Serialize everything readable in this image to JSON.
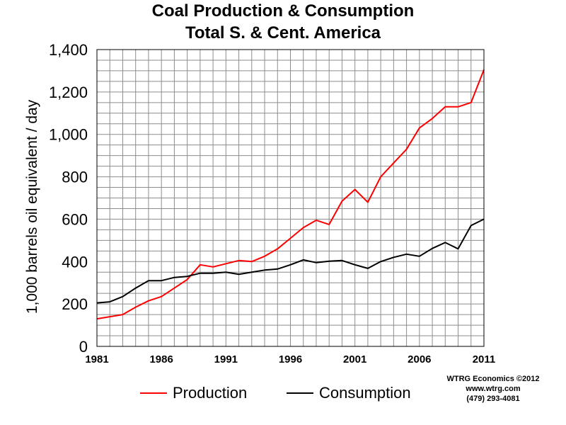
{
  "chart_data": {
    "type": "line",
    "title_line1": "Coal Production & Consumption",
    "title_line2": "Total S. & Cent. America",
    "ylabel": "1,000 barrels oil equivalent / day",
    "xlabel": "",
    "xlim": [
      1981,
      2011
    ],
    "ylim": [
      0,
      1400
    ],
    "x_ticks": [
      "1981",
      "1986",
      "1991",
      "1996",
      "2001",
      "2006",
      "2011"
    ],
    "y_ticks": [
      "0",
      "200",
      "400",
      "600",
      "800",
      "1,000",
      "1,200",
      "1,400"
    ],
    "grid": true,
    "legend_position": "bottom",
    "x": [
      1981,
      1982,
      1983,
      1984,
      1985,
      1986,
      1987,
      1988,
      1989,
      1990,
      1991,
      1992,
      1993,
      1994,
      1995,
      1996,
      1997,
      1998,
      1999,
      2000,
      2001,
      2002,
      2003,
      2004,
      2005,
      2006,
      2007,
      2008,
      2009,
      2010,
      2011
    ],
    "series": [
      {
        "name": "Production",
        "color": "#ff0000",
        "values": [
          130,
          140,
          150,
          185,
          215,
          235,
          275,
          315,
          385,
          375,
          390,
          405,
          400,
          425,
          460,
          510,
          560,
          595,
          575,
          685,
          740,
          680,
          800,
          865,
          930,
          1030,
          1075,
          1130,
          1130,
          1150,
          1305
        ]
      },
      {
        "name": "Consumption",
        "color": "#000000",
        "values": [
          205,
          210,
          235,
          275,
          310,
          310,
          325,
          330,
          345,
          345,
          350,
          340,
          350,
          360,
          365,
          385,
          408,
          395,
          402,
          405,
          385,
          368,
          400,
          420,
          435,
          425,
          462,
          490,
          460,
          570,
          600
        ]
      }
    ]
  },
  "credit": {
    "line1": "WTRG Economics  ©2012",
    "line2": "www.wtrg.com",
    "line3": "(479) 293-4081"
  }
}
